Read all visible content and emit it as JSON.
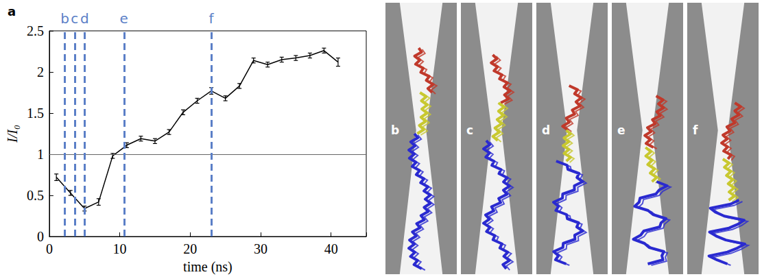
{
  "chart_data": {
    "type": "line",
    "label": "a",
    "x": [
      1,
      3,
      5,
      7,
      9,
      11,
      13,
      15,
      17,
      19,
      21,
      23,
      25,
      27,
      29,
      31,
      33,
      35,
      37,
      39,
      41
    ],
    "values": [
      0.72,
      0.53,
      0.34,
      0.42,
      0.98,
      1.11,
      1.19,
      1.16,
      1.27,
      1.51,
      1.65,
      1.77,
      1.68,
      1.83,
      2.14,
      2.09,
      2.15,
      2.17,
      2.2,
      2.26,
      2.12
    ],
    "errors": [
      0.04,
      0.03,
      0.03,
      0.04,
      0.03,
      0.03,
      0.03,
      0.03,
      0.03,
      0.03,
      0.03,
      0.04,
      0.03,
      0.03,
      0.03,
      0.03,
      0.03,
      0.03,
      0.03,
      0.03,
      0.05
    ],
    "color": "#000000",
    "xlim": [
      0,
      45
    ],
    "xticks": [
      0,
      10,
      20,
      30,
      40
    ],
    "ylim": [
      0,
      2.5
    ],
    "yticks": [
      0,
      0.5,
      1,
      1.5,
      2,
      2.5
    ],
    "x_label": "time (ns)",
    "y_label": "I/I₀",
    "grid": false,
    "hline": 1,
    "vlines": {
      "x": [
        2.2,
        3.6,
        5,
        10.6,
        23
      ],
      "labels": [
        "b",
        "c",
        "d",
        "e",
        "f"
      ],
      "color": "#5b7fc7"
    }
  },
  "snapshots": {
    "labels": [
      "b",
      "c",
      "d",
      "e",
      "f"
    ]
  }
}
